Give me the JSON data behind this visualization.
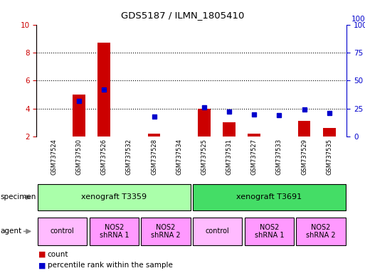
{
  "title": "GDS5187 / ILMN_1805410",
  "samples": [
    "GSM737524",
    "GSM737530",
    "GSM737526",
    "GSM737532",
    "GSM737528",
    "GSM737534",
    "GSM737525",
    "GSM737531",
    "GSM737527",
    "GSM737533",
    "GSM737529",
    "GSM737535"
  ],
  "counts": [
    2.0,
    5.0,
    8.7,
    2.0,
    2.2,
    2.0,
    4.0,
    3.0,
    2.2,
    2.0,
    3.1,
    2.6
  ],
  "percentiles": [
    null,
    32,
    42,
    null,
    18,
    null,
    26,
    22,
    20,
    19,
    24,
    21
  ],
  "ylim_left": [
    2,
    10
  ],
  "ylim_right": [
    0,
    100
  ],
  "yticks_left": [
    2,
    4,
    6,
    8,
    10
  ],
  "yticks_right": [
    0,
    25,
    50,
    75,
    100
  ],
  "bar_color": "#cc0000",
  "dot_color": "#0000cc",
  "bar_width": 0.5,
  "specimen_groups": [
    {
      "label": "xenograft T3359",
      "start": 0,
      "end": 5,
      "color": "#aaffaa"
    },
    {
      "label": "xenograft T3691",
      "start": 6,
      "end": 11,
      "color": "#44dd66"
    }
  ],
  "agent_groups": [
    {
      "label": "control",
      "start": 0,
      "end": 1,
      "color": "#ffbbff"
    },
    {
      "label": "NOS2\nshRNA 1",
      "start": 2,
      "end": 3,
      "color": "#ff99ff"
    },
    {
      "label": "NOS2\nshRNA 2",
      "start": 4,
      "end": 5,
      "color": "#ff99ff"
    },
    {
      "label": "control",
      "start": 6,
      "end": 7,
      "color": "#ffbbff"
    },
    {
      "label": "NOS2\nshRNA 1",
      "start": 8,
      "end": 9,
      "color": "#ff99ff"
    },
    {
      "label": "NOS2\nshRNA 2",
      "start": 10,
      "end": 11,
      "color": "#ff99ff"
    }
  ],
  "legend_count_color": "#cc0000",
  "legend_dot_color": "#0000cc",
  "bg_color": "#ffffff",
  "left_axis_color": "#cc0000",
  "right_axis_color": "#0000cc",
  "fig_width": 5.13,
  "fig_height": 3.84,
  "dpi": 100
}
